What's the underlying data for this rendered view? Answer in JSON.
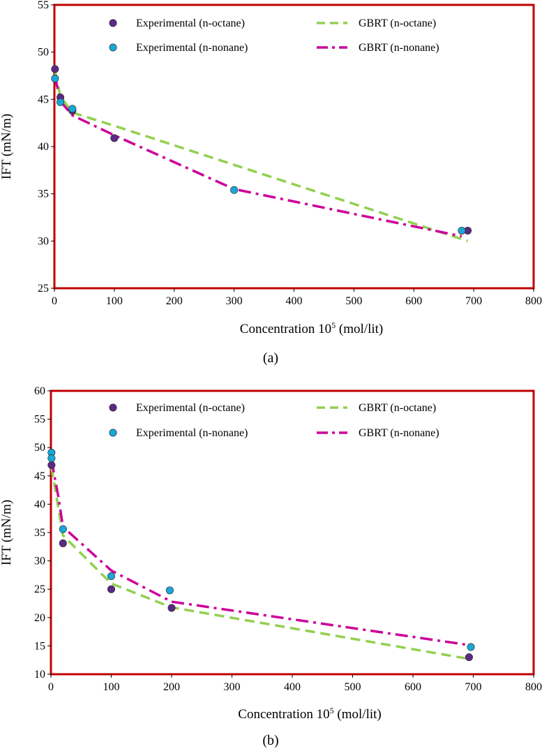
{
  "colors": {
    "frame": "#c00000",
    "octane_marker": "#5b2a86",
    "nonane_marker": "#1aa6d6",
    "gbrt_octane": "#92d050",
    "gbrt_nonane": "#cc0099"
  },
  "chart_data": [
    {
      "type": "scatter",
      "caption": "(a)",
      "xlabel": "Concentration  10",
      "xlabel_sup": "5",
      "xlabel_unit": " (mol/lit)",
      "ylabel": "IFT (mN/m)",
      "xlim": [
        0,
        800
      ],
      "ylim": [
        25,
        55
      ],
      "xticks": [
        0,
        100,
        200,
        300,
        400,
        500,
        600,
        700,
        800
      ],
      "yticks": [
        25,
        30,
        35,
        40,
        45,
        50,
        55
      ],
      "legend_position": "top",
      "series": [
        {
          "name": "Experimental (n-octane)",
          "kind": "marker",
          "color_key": "octane_marker",
          "x": [
            1,
            10,
            30,
            100,
            690
          ],
          "y": [
            48.2,
            45.2,
            43.8,
            40.9,
            31.1
          ]
        },
        {
          "name": "Experimental (n-nonane)",
          "kind": "marker",
          "color_key": "nonane_marker",
          "x": [
            1,
            10,
            30,
            300,
            680
          ],
          "y": [
            47.2,
            44.7,
            44.0,
            35.4,
            31.1
          ]
        },
        {
          "name": "GBRT (n-octane)",
          "kind": "dashed",
          "color_key": "gbrt_octane",
          "x": [
            1,
            10,
            30,
            100,
            690
          ],
          "y": [
            48.0,
            45.3,
            43.6,
            42.2,
            30.0
          ]
        },
        {
          "name": "GBRT (n-nonane)",
          "kind": "dashdot",
          "color_key": "gbrt_nonane",
          "x": [
            1,
            10,
            30,
            100,
            300,
            680
          ],
          "y": [
            47.4,
            44.8,
            43.3,
            41.2,
            35.5,
            30.5
          ]
        }
      ]
    },
    {
      "type": "scatter",
      "caption": "(b)",
      "xlabel": "Concentration  10",
      "xlabel_sup": "5",
      "xlabel_unit": " (mol/lit)",
      "ylabel": "IFT (mN/m)",
      "xlim": [
        0,
        800
      ],
      "ylim": [
        10,
        60
      ],
      "xticks": [
        0,
        100,
        200,
        300,
        400,
        500,
        600,
        700,
        800
      ],
      "yticks": [
        10,
        15,
        20,
        25,
        30,
        35,
        40,
        45,
        50,
        55,
        60
      ],
      "legend_position": "top",
      "series": [
        {
          "name": "Experimental (n-octane)",
          "kind": "marker",
          "color_key": "octane_marker",
          "x": [
            1,
            20,
            100,
            200,
            693
          ],
          "y": [
            46.9,
            33.1,
            25.0,
            21.7,
            13.0
          ]
        },
        {
          "name": "Experimental (n-nonane)",
          "kind": "marker",
          "color_key": "nonane_marker",
          "x": [
            1,
            1,
            20,
            100,
            197,
            696
          ],
          "y": [
            49.1,
            48.1,
            35.6,
            27.3,
            24.8,
            14.8
          ]
        },
        {
          "name": "GBRT (n-octane)",
          "kind": "dashed",
          "color_key": "gbrt_octane",
          "x": [
            1,
            20,
            100,
            200,
            693
          ],
          "y": [
            46.5,
            34.5,
            26.0,
            21.8,
            12.7
          ]
        },
        {
          "name": "GBRT (n-nonane)",
          "kind": "dashdot",
          "color_key": "gbrt_nonane",
          "x": [
            1,
            12,
            20,
            100,
            200,
            696
          ],
          "y": [
            47.8,
            41.5,
            36.0,
            28.3,
            22.8,
            15.1
          ]
        }
      ]
    }
  ]
}
